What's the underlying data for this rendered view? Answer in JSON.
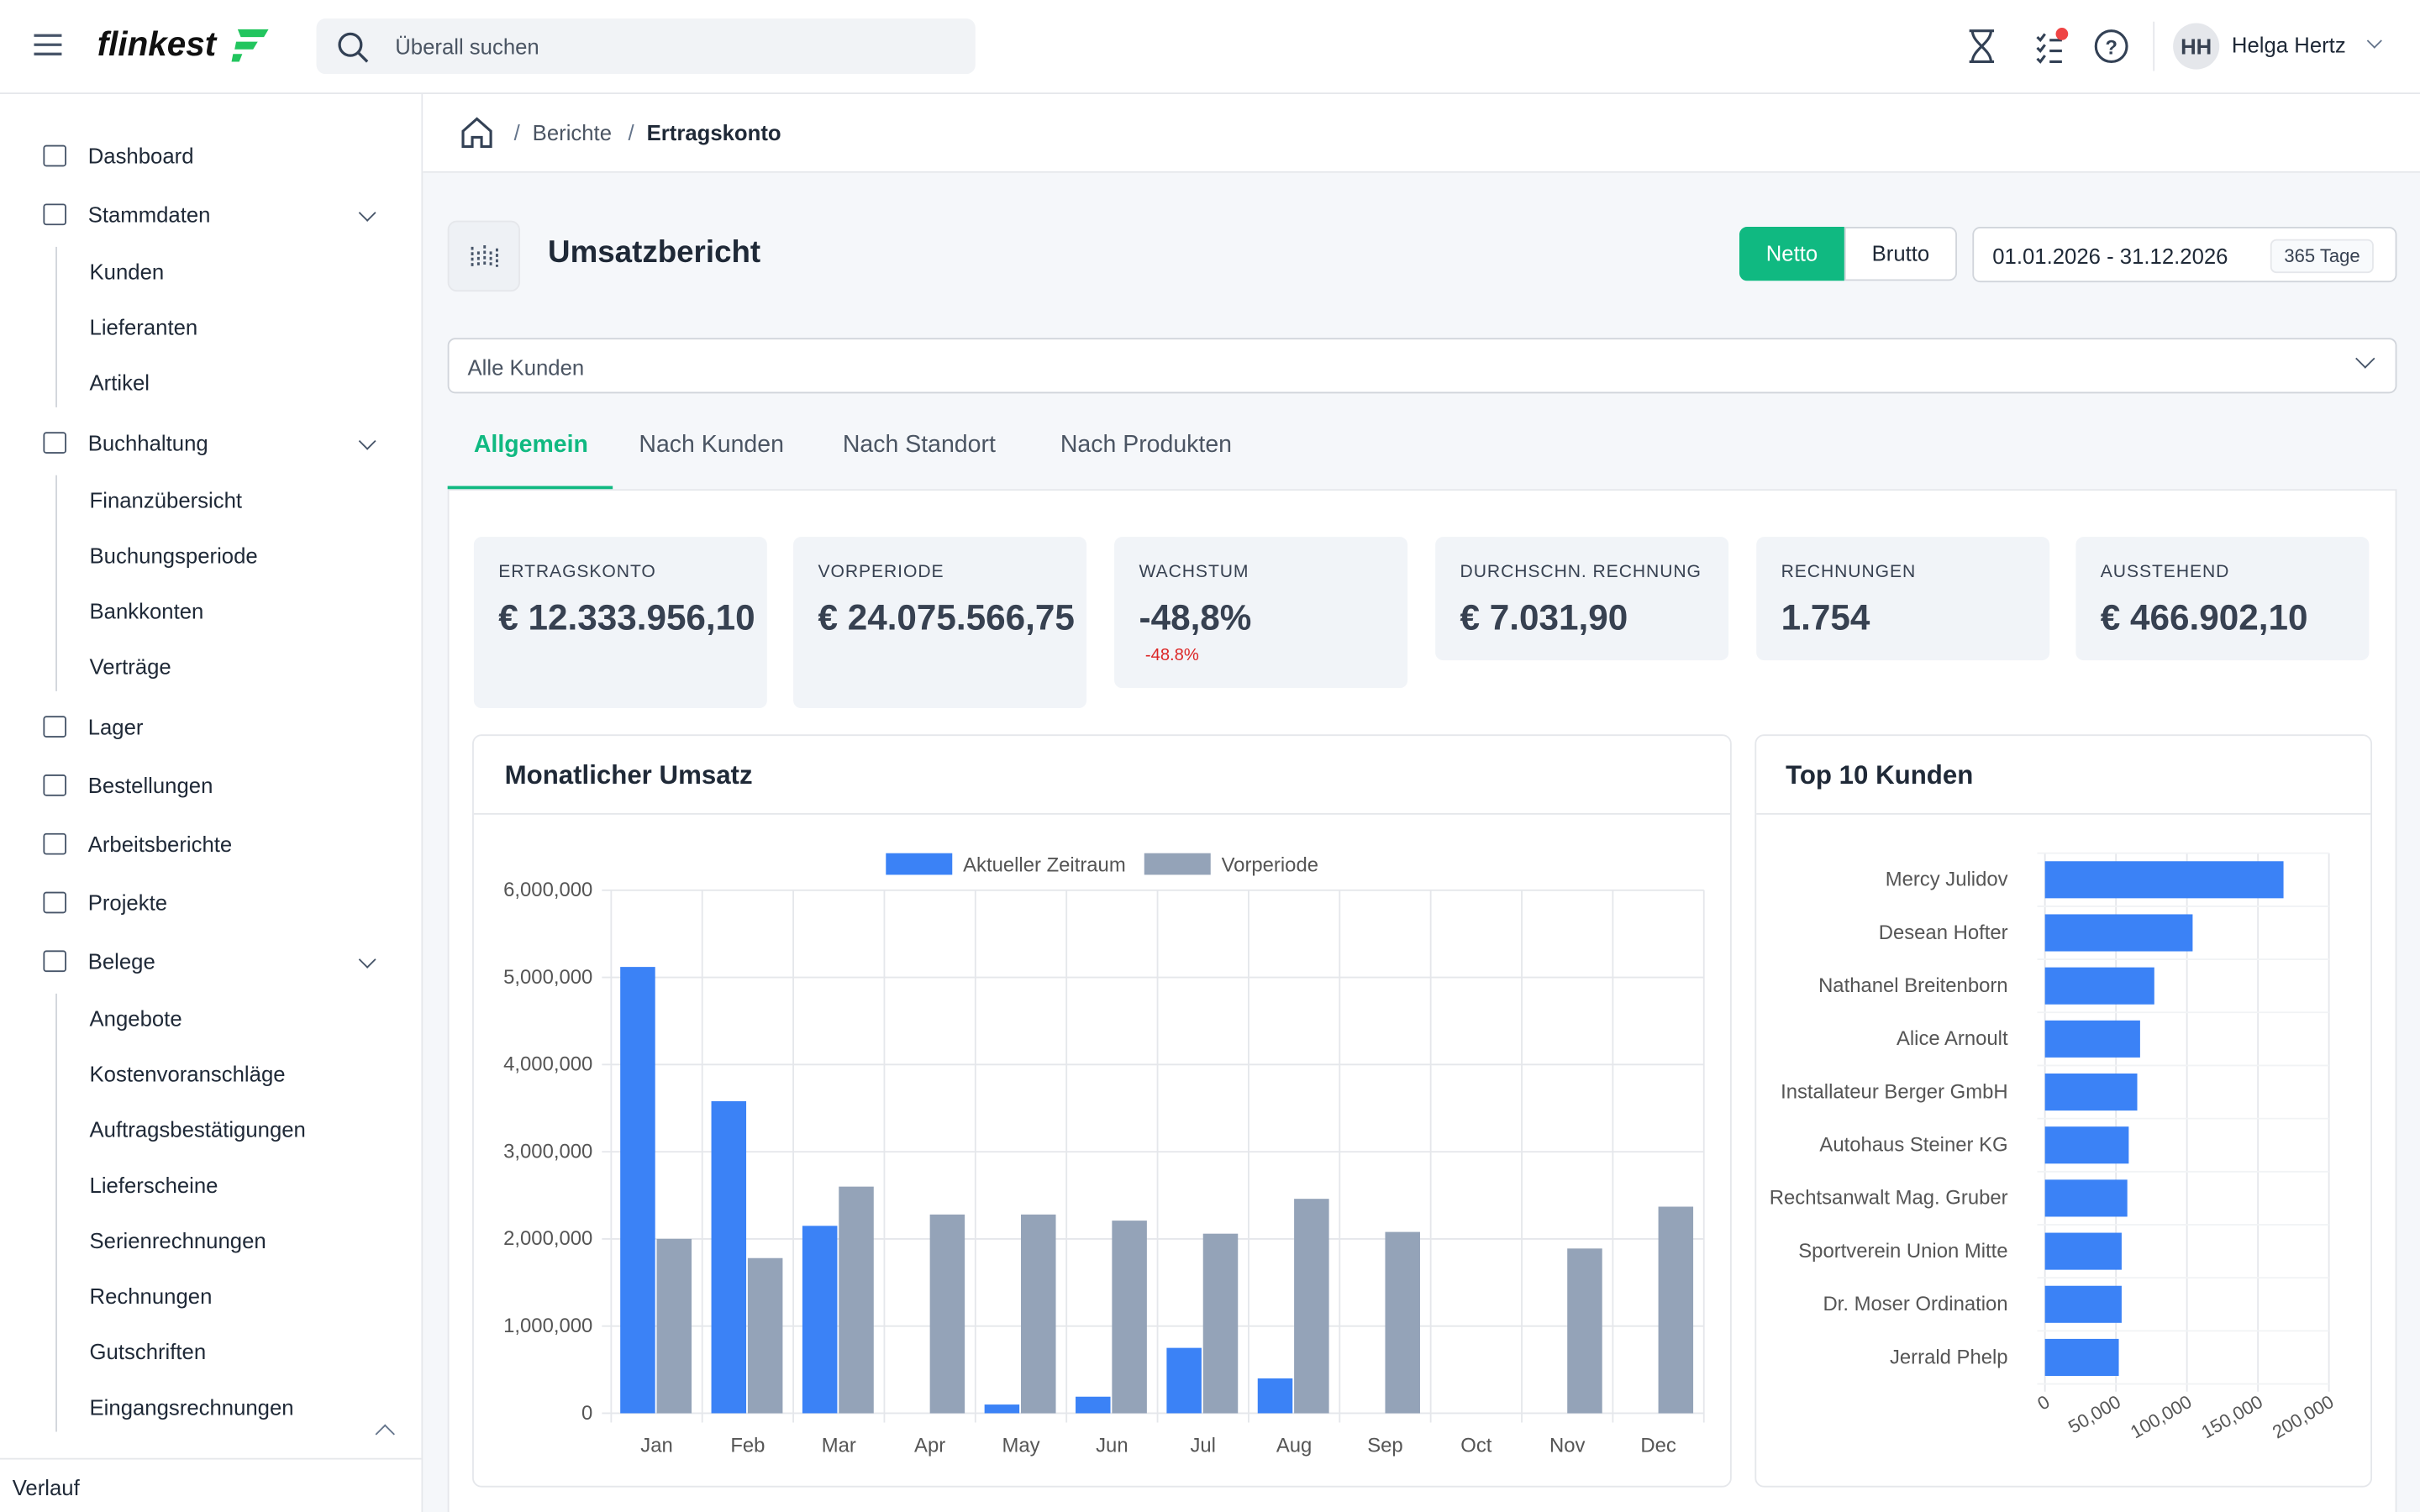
{
  "header": {
    "logo": "flinkest",
    "search_placeholder": "Überall suchen",
    "user_initials": "HH",
    "user_name": "Helga Hertz"
  },
  "sidebar": {
    "items": [
      {
        "label": "Dashboard"
      },
      {
        "label": "Stammdaten",
        "children": [
          "Kunden",
          "Lieferanten",
          "Artikel"
        ]
      },
      {
        "label": "Buchhaltung",
        "children": [
          "Finanzübersicht",
          "Buchungsperiode",
          "Bankkonten",
          "Verträge"
        ]
      },
      {
        "label": "Lager"
      },
      {
        "label": "Bestellungen"
      },
      {
        "label": "Arbeitsberichte"
      },
      {
        "label": "Projekte"
      },
      {
        "label": "Belege",
        "children": [
          "Angebote",
          "Kostenvoranschläge",
          "Auftragsbestätigungen",
          "Lieferscheine",
          "Serienrechnungen",
          "Rechnungen",
          "Gutschriften",
          "Eingangsrechnungen"
        ]
      }
    ],
    "footer": "Verlauf"
  },
  "breadcrumb": [
    "Berichte",
    "Ertragskonto"
  ],
  "page": {
    "title": "Umsatzbericht",
    "toggle": [
      "Netto",
      "Brutto"
    ],
    "date_range": "01.01.2026 - 31.12.2026",
    "days": "365 Tage",
    "filter": "Alle Kunden",
    "tabs": [
      "Allgemein",
      "Nach Kunden",
      "Nach Standort",
      "Nach Produkten"
    ],
    "kpis": [
      {
        "label": "ERTRAGSKONTO",
        "value": "€ 12.333.956,10"
      },
      {
        "label": "VORPERIODE",
        "value": "€ 24.075.566,75"
      },
      {
        "label": "WACHSTUM",
        "value": "-48,8%",
        "sub": "-48.8%"
      },
      {
        "label": "DURCHSCHN. RECHNUNG",
        "value": "€ 7.031,90"
      },
      {
        "label": "RECHNUNGEN",
        "value": "1.754"
      },
      {
        "label": "AUSSTEHEND",
        "value": "€ 466.902,10"
      }
    ]
  },
  "chart_data": [
    {
      "type": "bar",
      "title": "Monatlicher Umsatz",
      "categories": [
        "Jan",
        "Feb",
        "Mar",
        "Apr",
        "May",
        "Jun",
        "Jul",
        "Aug",
        "Sep",
        "Oct",
        "Nov",
        "Dec"
      ],
      "series": [
        {
          "name": "Aktueller Zeitraum",
          "color": "#3b82f6",
          "values": [
            5120000,
            3580000,
            2150000,
            0,
            100000,
            190000,
            750000,
            400000,
            0,
            0,
            0,
            0
          ]
        },
        {
          "name": "Vorperiode",
          "color": "#94a3b8",
          "values": [
            2000000,
            1780000,
            2600000,
            2280000,
            2280000,
            2210000,
            2060000,
            2460000,
            2080000,
            0,
            1890000,
            2370000
          ]
        }
      ],
      "ylim": [
        0,
        6000000
      ],
      "yticks": [
        0,
        {
          "value": 1000000,
          "label": "1,000,000"
        },
        {
          "value": 2000000,
          "label": "2,000,000"
        },
        {
          "value": 3000000,
          "label": "3,000,000"
        },
        {
          "value": 4000000,
          "label": "4,000,000"
        },
        {
          "value": 5000000,
          "label": "5,000,000"
        },
        {
          "value": 6000000,
          "label": "6,000,000"
        }
      ],
      "grid": true,
      "legend": "top"
    },
    {
      "type": "hbar",
      "title": "Top 10 Kunden",
      "categories": [
        "Mercy Julidov",
        "Desean Hofter",
        "Nathanel Breitenborn",
        "Alice Arnoult",
        "Installateur Berger GmbH",
        "Autohaus Steiner KG",
        "Rechtsanwalt Mag. Gruber",
        "Sportverein Union Mitte",
        "Dr. Moser Ordination",
        "Jerrald Phelp"
      ],
      "values": [
        168000,
        104000,
        77000,
        67000,
        65000,
        59000,
        58000,
        54000,
        54000,
        52000
      ],
      "color": "#3b82f6",
      "xlim": [
        0,
        200000
      ],
      "xticks": [
        0,
        {
          "value": 50000,
          "label": "50,000"
        },
        {
          "value": 100000,
          "label": "100,000"
        },
        {
          "value": 150000,
          "label": "150,000"
        },
        {
          "value": 200000,
          "label": "200,000"
        }
      ],
      "grid": true
    }
  ]
}
